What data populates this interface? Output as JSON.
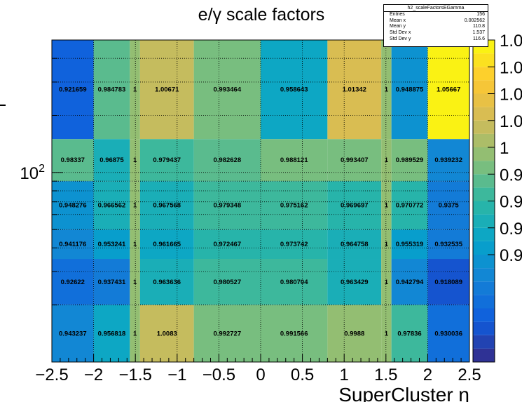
{
  "chart_data": {
    "type": "heatmap",
    "title": "e/γ scale factors",
    "xlabel": "SuperCluster η",
    "ylabel": "",
    "x_edges": [
      -2.5,
      -2.0,
      -1.566,
      -1.4442,
      -0.8,
      0.0,
      0.8,
      1.4442,
      1.566,
      2.0,
      2.5
    ],
    "y_edges": [
      10,
      20,
      35,
      50,
      90,
      150,
      500
    ],
    "ylim": [
      10,
      500
    ],
    "y_scale": "log",
    "y_tick_labels": [
      "10^2"
    ],
    "x_tick_labels": [
      "−2.5",
      "−2",
      "−1.5",
      "−1",
      "−0.5",
      "0",
      "0.5",
      "1",
      "1.5",
      "2",
      "2.5"
    ],
    "x_ticks": [
      -2.5,
      -2,
      -1.5,
      -1,
      -0.5,
      0,
      0.5,
      1,
      1.5,
      2,
      2.5
    ],
    "grid": true,
    "palette": "kBird",
    "zlim": [
      0.9,
      1.05
    ],
    "rows_top_to_bottom": [
      [
        "0.921659",
        "0.984783",
        "1",
        "1.00671",
        "0.993464",
        "0.958643",
        "1.01342",
        "1",
        "0.948875",
        "1.05667"
      ],
      [
        "0.98337",
        "0.96875",
        "1",
        "0.979437",
        "0.982628",
        "0.988121",
        "0.993407",
        "1",
        "0.989529",
        "0.939232"
      ],
      [
        "0.948276",
        "0.966562",
        "1",
        "0.967568",
        "0.979348",
        "0.975162",
        "0.969697",
        "1",
        "0.970772",
        "0.9375"
      ],
      [
        "0.941176",
        "0.953241",
        "1",
        "0.961665",
        "0.972467",
        "0.973742",
        "0.964758",
        "1",
        "0.955319",
        "0.932535"
      ],
      [
        "0.92622",
        "0.937431",
        "1",
        "0.963636",
        "0.980527",
        "0.980704",
        "0.963429",
        "1",
        "0.942794",
        "0.918089"
      ],
      [
        "0.943237",
        "0.956818",
        "1",
        "1.0083",
        "0.992727",
        "0.991566",
        "0.9988",
        "1",
        "0.97836",
        "0.930036"
      ]
    ],
    "palette_tick_labels": [
      "1.0",
      "1.0",
      "1.0",
      "1.0",
      "1",
      "0.9",
      "0.9",
      "0.9",
      "0.9"
    ],
    "palette_tick_values": [
      1.05,
      1.0375,
      1.025,
      1.0125,
      1.0,
      0.9875,
      0.975,
      0.9625,
      0.95
    ]
  },
  "stats": {
    "title": "h2_scaleFactorsEGamma",
    "rows": [
      {
        "label": "Entries",
        "value": "156"
      },
      {
        "label": "Mean x",
        "value": "0.002562"
      },
      {
        "label": "Mean y",
        "value": "110.8"
      },
      {
        "label": "Std Dev x",
        "value": "1.537"
      },
      {
        "label": "Std Dev y",
        "value": "116.6"
      }
    ]
  }
}
